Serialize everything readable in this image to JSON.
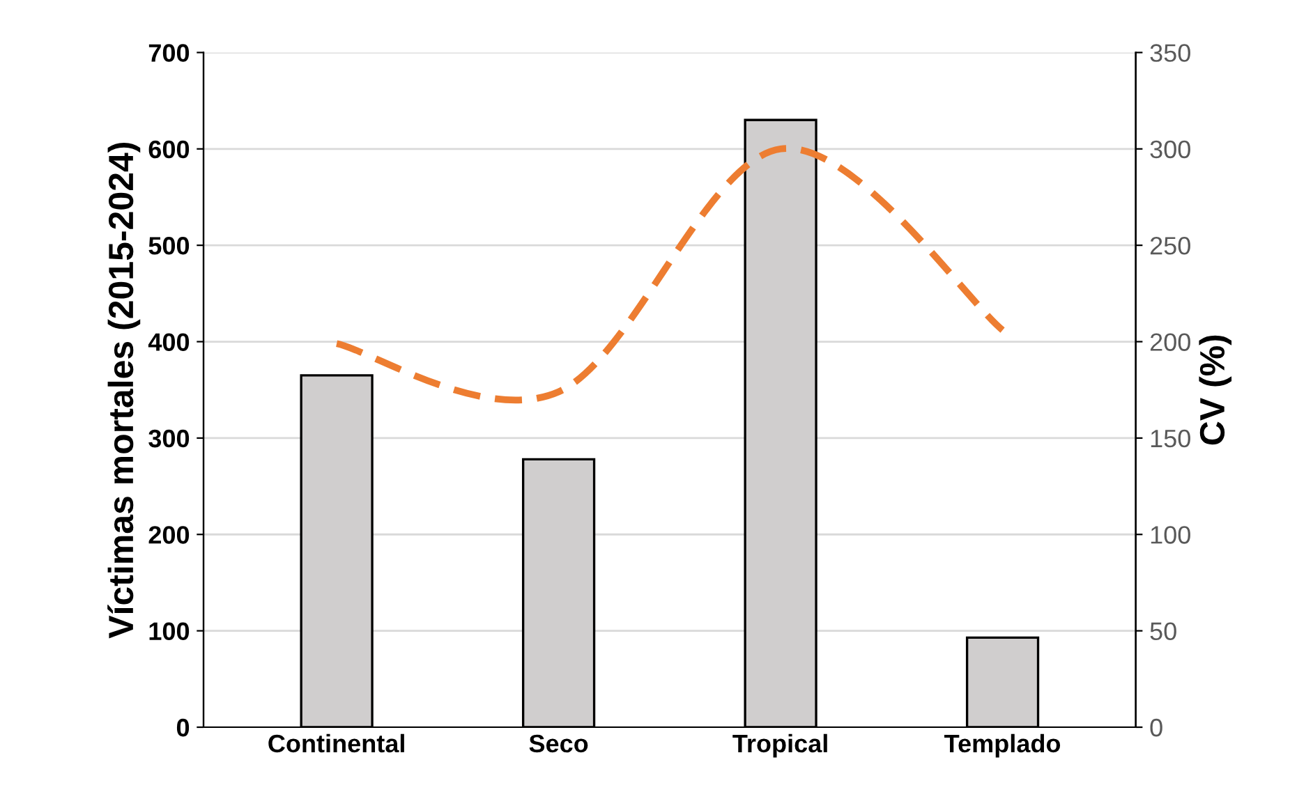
{
  "chart_data": {
    "type": "bar",
    "categories": [
      "Continental",
      "Seco",
      "Tropical",
      "Templado"
    ],
    "ylabel": "Víctimas mortales (2015-2024)",
    "y2label": "CV (%)",
    "series": [
      {
        "color": "#d0cece",
        "values": [
          365,
          278,
          630,
          93
        ]
      },
      {
        "type": "line",
        "axis": "y2",
        "color": "#ed7d31",
        "line_style": "dashed",
        "marker": "none",
        "values": [
          199,
          174,
          300,
          206
        ]
      }
    ],
    "ylim": [
      0,
      700
    ],
    "yticks": [
      0,
      100,
      200,
      300,
      400,
      500,
      600,
      700
    ],
    "y2lim": [
      0,
      350
    ],
    "y2ticks": [
      0,
      50,
      100,
      150,
      200,
      250,
      300,
      350
    ],
    "grid": "y",
    "legend": false
  }
}
